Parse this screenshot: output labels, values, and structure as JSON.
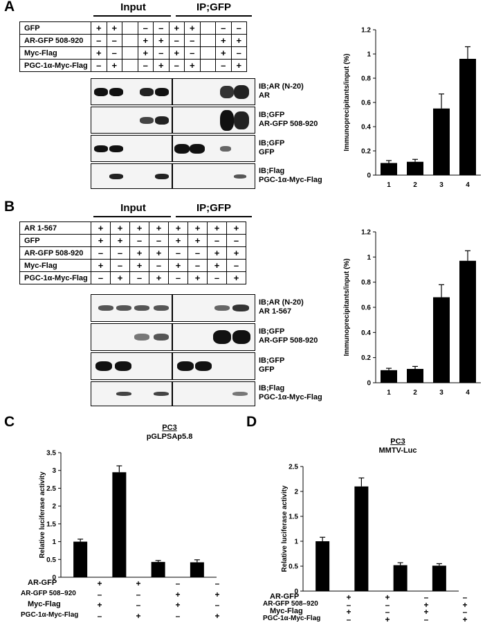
{
  "panels": {
    "A": {
      "letter": "A",
      "input_label": "Input",
      "ip_label": "IP;GFP",
      "rows": [
        {
          "label": "GFP",
          "signs": [
            "+",
            "+",
            "",
            "–",
            "–",
            "+",
            "+",
            "",
            "–",
            "–"
          ]
        },
        {
          "label": "AR-GFP 508-920",
          "signs": [
            "–",
            "–",
            "",
            "+",
            "+",
            "–",
            "–",
            "",
            "+",
            "+"
          ]
        },
        {
          "label": "Myc-Flag",
          "signs": [
            "+",
            "–",
            "",
            "+",
            "–",
            "+",
            "–",
            "",
            "+",
            "–"
          ]
        },
        {
          "label": "PGC-1α-Myc-Flag",
          "signs": [
            "–",
            "+",
            "",
            "–",
            "+",
            "–",
            "+",
            "",
            "–",
            "+"
          ]
        }
      ],
      "blots": [
        {
          "line1": "IB;AR (N-20)",
          "line2": "AR"
        },
        {
          "line1": "IB;GFP",
          "line2": "AR-GFP 508-920"
        },
        {
          "line1": "IB;GFP",
          "line2": "GFP"
        },
        {
          "line1": "IB;Flag",
          "line2": "PGC-1α-Myc-Flag"
        }
      ]
    },
    "B": {
      "letter": "B",
      "input_label": "Input",
      "ip_label": "IP;GFP",
      "rows": [
        {
          "label": "AR 1-567",
          "signs": [
            "+",
            "+",
            "+",
            "+",
            "+",
            "+",
            "+",
            "+"
          ]
        },
        {
          "label": "GFP",
          "signs": [
            "+",
            "+",
            "–",
            "–",
            "+",
            "+",
            "–",
            "–"
          ]
        },
        {
          "label": "AR-GFP 508-920",
          "signs": [
            "–",
            "–",
            "+",
            "+",
            "–",
            "–",
            "+",
            "+"
          ]
        },
        {
          "label": "Myc-Flag",
          "signs": [
            "+",
            "–",
            "+",
            "–",
            "+",
            "–",
            "+",
            "–"
          ]
        },
        {
          "label": "PGC-1α-Myc-Flag",
          "signs": [
            "–",
            "+",
            "–",
            "+",
            "–",
            "+",
            "–",
            "+"
          ]
        }
      ],
      "blots": [
        {
          "line1": "IB;AR (N-20)",
          "line2": "AR 1-567"
        },
        {
          "line1": "IB;GFP",
          "line2": "AR-GFP 508-920"
        },
        {
          "line1": "IB;GFP",
          "line2": "GFP"
        },
        {
          "line1": "IB;Flag",
          "line2": "PGC-1α-Myc-Flag"
        }
      ]
    },
    "C": {
      "letter": "C",
      "conditions": [
        {
          "label": "AR-GFP",
          "signs": [
            "+",
            "+",
            "–",
            "–"
          ]
        },
        {
          "label": "AR-GFP 508–920",
          "signs": [
            "–",
            "–",
            "+",
            "+"
          ]
        },
        {
          "label": "Myc-Flag",
          "signs": [
            "+",
            "–",
            "+",
            "–"
          ]
        },
        {
          "label": "PGC-1α-Myc-Flag",
          "signs": [
            "–",
            "+",
            "–",
            "+"
          ]
        }
      ]
    },
    "D": {
      "letter": "D",
      "conditions": [
        {
          "label": "AR-GFP",
          "signs": [
            "+",
            "+",
            "–",
            "–"
          ]
        },
        {
          "label": "AR-GFP 508–920",
          "signs": [
            "–",
            "–",
            "+",
            "+"
          ]
        },
        {
          "label": "Myc-Flag",
          "signs": [
            "+",
            "–",
            "+",
            "–"
          ]
        },
        {
          "label": "PGC-1α-Myc-Flag",
          "signs": [
            "–",
            "+",
            "–",
            "+"
          ]
        }
      ]
    }
  },
  "chart_data": [
    {
      "id": "A",
      "type": "bar",
      "categories": [
        "1",
        "2",
        "3",
        "4"
      ],
      "values": [
        0.1,
        0.11,
        0.55,
        0.96
      ],
      "errors": [
        0.02,
        0.02,
        0.12,
        0.1
      ],
      "title": "",
      "ylabel": "Immunoprecipitants/input (%)",
      "ylim": [
        0,
        1.2
      ],
      "yticks": [
        "0",
        "0.2",
        "0.4",
        "0.6",
        "0.8",
        "1",
        "1.2"
      ],
      "grid": false,
      "color": "#000000"
    },
    {
      "id": "B",
      "type": "bar",
      "categories": [
        "1",
        "2",
        "3",
        "4"
      ],
      "values": [
        0.1,
        0.11,
        0.68,
        0.97
      ],
      "errors": [
        0.015,
        0.02,
        0.1,
        0.08
      ],
      "title": "",
      "ylabel": "Immunoprecipitants/input (%)",
      "ylim": [
        0,
        1.2
      ],
      "yticks": [
        "0",
        "0.2",
        "0.4",
        "0.6",
        "0.8",
        "1",
        "1.2"
      ],
      "grid": false,
      "color": "#000000"
    },
    {
      "id": "C",
      "type": "bar",
      "categories": [
        "",
        "",
        "",
        ""
      ],
      "values": [
        1.0,
        2.95,
        0.43,
        0.42
      ],
      "errors": [
        0.07,
        0.18,
        0.04,
        0.07
      ],
      "title_line1": "PC3",
      "title_line2": "pGLPSAp5.8",
      "ylabel": "Relative luciferase activity",
      "ylim": [
        0,
        3.5
      ],
      "yticks": [
        "0",
        "0.5",
        "1",
        "1.5",
        "2",
        "2.5",
        "3",
        "3.5"
      ],
      "grid": false,
      "color": "#000000"
    },
    {
      "id": "D",
      "type": "bar",
      "categories": [
        "",
        "",
        "",
        ""
      ],
      "values": [
        1.0,
        2.1,
        0.52,
        0.51
      ],
      "errors": [
        0.08,
        0.17,
        0.05,
        0.04
      ],
      "title_line1": "PC3",
      "title_line2": "MMTV-Luc",
      "ylabel": "Relative luciferase activity",
      "ylim": [
        0,
        2.5
      ],
      "yticks": [
        "0",
        "0.5",
        "1",
        "1.5",
        "2",
        "2.5"
      ],
      "grid": false,
      "color": "#000000"
    }
  ]
}
